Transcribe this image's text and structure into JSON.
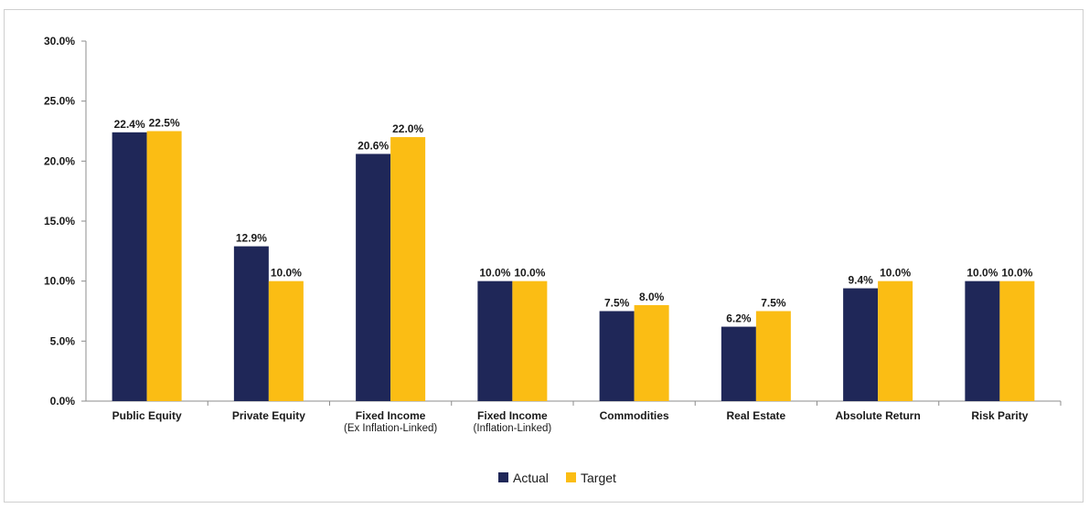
{
  "colors": {
    "actual": "#1f2758",
    "target": "#fbbd14",
    "axis": "#8c8c8c"
  },
  "chart_data": {
    "type": "bar",
    "categories": [
      "Public Equity",
      "Private Equity",
      "Fixed Income (Ex Inflation-Linked)",
      "Fixed Income (Inflation-Linked)",
      "Commodities",
      "Real Estate",
      "Absolute Return",
      "Risk Parity"
    ],
    "category_lines": [
      [
        "Public Equity"
      ],
      [
        "Private Equity"
      ],
      [
        "Fixed Income",
        "(Ex Inflation-Linked)"
      ],
      [
        "Fixed Income",
        "(Inflation-Linked)"
      ],
      [
        "Commodities"
      ],
      [
        "Real Estate"
      ],
      [
        "Absolute Return"
      ],
      [
        "Risk Parity"
      ]
    ],
    "series": [
      {
        "name": "Actual",
        "values": [
          22.4,
          12.9,
          20.6,
          10.0,
          7.5,
          6.2,
          9.4,
          10.0
        ],
        "labels": [
          "22.4%",
          "12.9%",
          "20.6%",
          "10.0%",
          "7.5%",
          "6.2%",
          "9.4%",
          "10.0%"
        ]
      },
      {
        "name": "Target",
        "values": [
          22.5,
          10.0,
          22.0,
          10.0,
          8.0,
          7.5,
          10.0,
          10.0
        ],
        "labels": [
          "22.5%",
          "10.0%",
          "22.0%",
          "10.0%",
          "8.0%",
          "7.5%",
          "10.0%",
          "10.0%"
        ]
      }
    ],
    "y_ticks": [
      "0.0%",
      "5.0%",
      "10.0%",
      "15.0%",
      "20.0%",
      "25.0%",
      "30.0%"
    ],
    "ylim": [
      0,
      30
    ],
    "grid": false,
    "legend_position": "bottom-center"
  }
}
